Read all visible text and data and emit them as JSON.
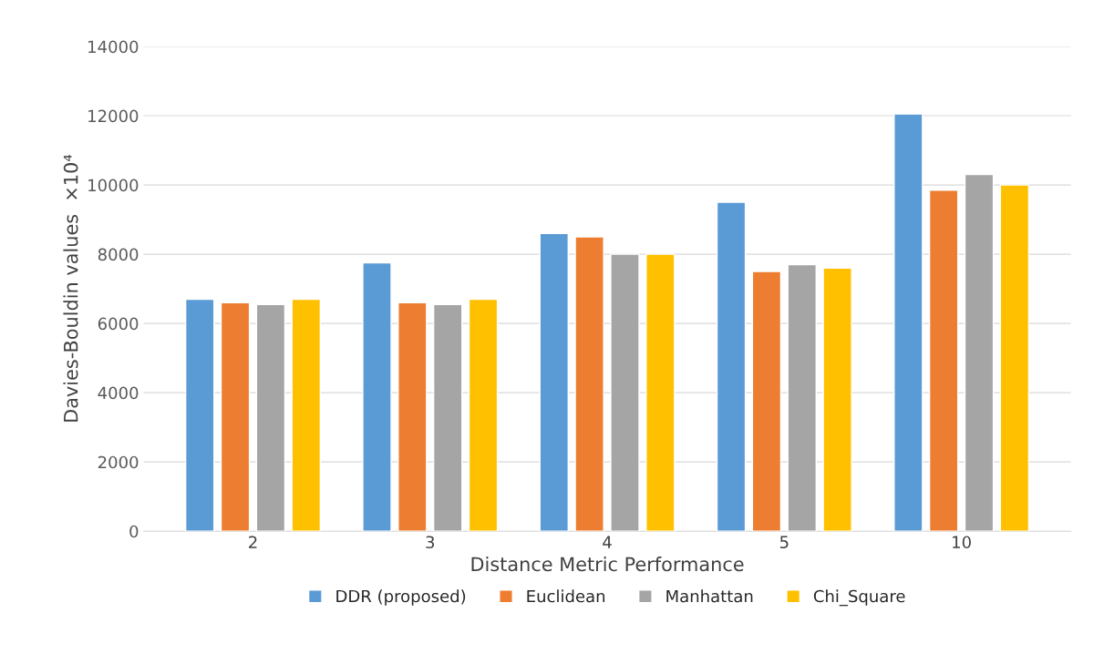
{
  "chart_data": {
    "type": "bar",
    "categories": [
      "2",
      "3",
      "4",
      "5",
      "10"
    ],
    "xlabel": "Distance Metric Performance",
    "ylabel": "Davies-Bouldin values  ×10⁴",
    "ylim": [
      0,
      14000
    ],
    "yticks": [
      0,
      2000,
      4000,
      6000,
      8000,
      10000,
      12000,
      14000
    ],
    "grid": "y",
    "legend": "bottom",
    "series": [
      {
        "name": "DDR (proposed)",
        "color": "#5b9bd5",
        "values": [
          6700,
          7750,
          8600,
          9500,
          12050
        ]
      },
      {
        "name": "Euclidean",
        "color": "#ed7d31",
        "values": [
          6600,
          6600,
          8500,
          7500,
          9850
        ]
      },
      {
        "name": "Manhattan",
        "color": "#a5a5a5",
        "values": [
          6550,
          6550,
          8000,
          7700,
          10300
        ]
      },
      {
        "name": "Chi_Square",
        "color": "#ffc000",
        "values": [
          6700,
          6700,
          8000,
          7600,
          10000
        ]
      }
    ]
  }
}
